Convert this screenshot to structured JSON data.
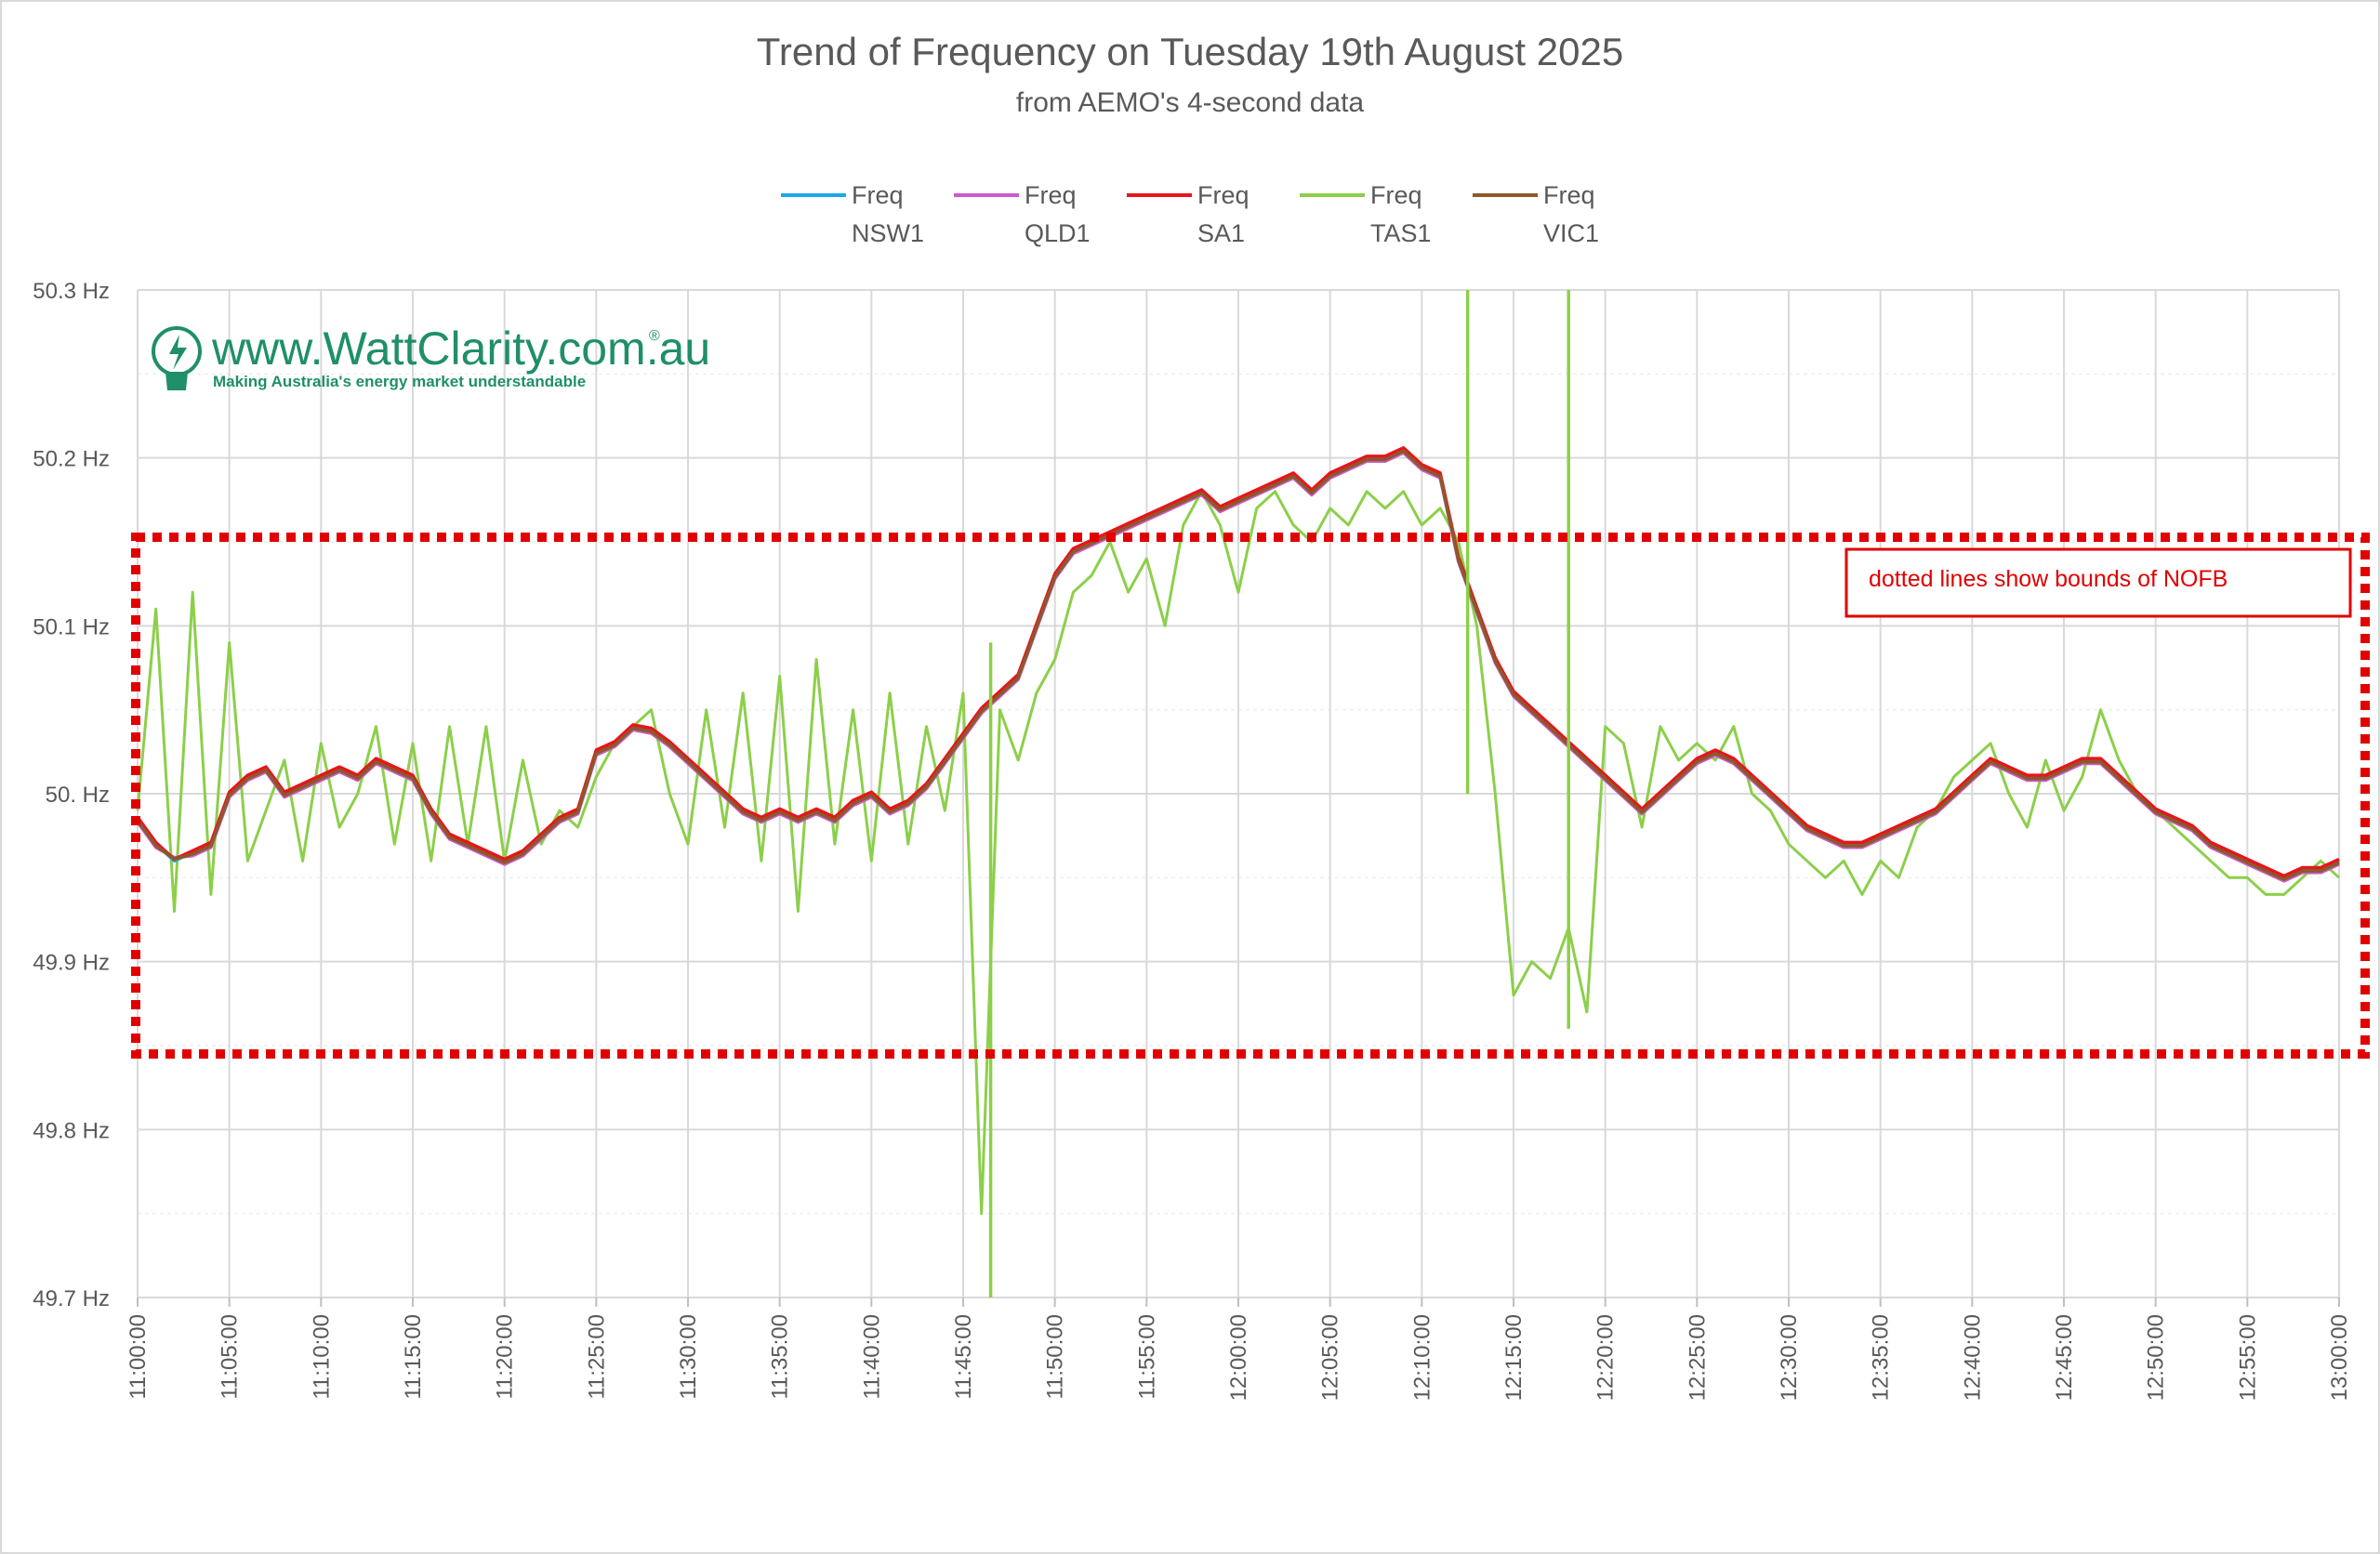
{
  "chart_data": {
    "type": "line",
    "title": "Trend of Frequency on Tuesday 19th August 2025",
    "subtitle": "from AEMO's 4-second data",
    "ylabel": "",
    "xlabel": "",
    "ylim": [
      49.7,
      50.3
    ],
    "yticks": [
      "49.7 Hz",
      "49.8 Hz",
      "49.9 Hz",
      "50. Hz",
      "50.1 Hz",
      "50.2 Hz",
      "50.3 Hz"
    ],
    "xticks": [
      "11:00:00",
      "11:05:00",
      "11:10:00",
      "11:15:00",
      "11:20:00",
      "11:25:00",
      "11:30:00",
      "11:35:00",
      "11:40:00",
      "11:45:00",
      "11:50:00",
      "11:55:00",
      "12:00:00",
      "12:05:00",
      "12:10:00",
      "12:15:00",
      "12:20:00",
      "12:25:00",
      "12:30:00",
      "12:35:00",
      "12:40:00",
      "12:45:00",
      "12:50:00",
      "12:55:00",
      "13:00:00"
    ],
    "legend_position": "top",
    "grid": true,
    "x_minutes": [
      0,
      1,
      2,
      3,
      4,
      5,
      6,
      7,
      8,
      9,
      10,
      11,
      12,
      13,
      14,
      15,
      16,
      17,
      18,
      19,
      20,
      21,
      22,
      23,
      24,
      25,
      26,
      27,
      28,
      29,
      30,
      31,
      32,
      33,
      34,
      35,
      36,
      37,
      38,
      39,
      40,
      41,
      42,
      43,
      44,
      45,
      46,
      47,
      48,
      49,
      50,
      51,
      52,
      53,
      54,
      55,
      56,
      57,
      58,
      59,
      60,
      61,
      62,
      63,
      64,
      65,
      66,
      67,
      68,
      69,
      70,
      71,
      72,
      73,
      74,
      75,
      76,
      77,
      78,
      79,
      80,
      81,
      82,
      83,
      84,
      85,
      86,
      87,
      88,
      89,
      90,
      91,
      92,
      93,
      94,
      95,
      96,
      97,
      98,
      99,
      100,
      101,
      102,
      103,
      104,
      105,
      106,
      107,
      108,
      109,
      110,
      111,
      112,
      113,
      114,
      115,
      116,
      117,
      118,
      119,
      120
    ],
    "series": [
      {
        "name": "Freq NSW1",
        "legend": [
          "Freq",
          "NSW1"
        ],
        "color": "#1aa7e8",
        "values": [
          49.985,
          49.97,
          49.96,
          49.965,
          49.97,
          50.0,
          50.01,
          50.015,
          50.0,
          50.005,
          50.01,
          50.015,
          50.01,
          50.02,
          50.015,
          50.01,
          49.99,
          49.975,
          49.97,
          49.965,
          49.96,
          49.965,
          49.975,
          49.985,
          49.99,
          50.025,
          50.03,
          50.04,
          50.038,
          50.03,
          50.02,
          50.01,
          50.0,
          49.99,
          49.985,
          49.99,
          49.985,
          49.99,
          49.985,
          49.995,
          50.0,
          49.99,
          49.995,
          50.005,
          50.02,
          50.035,
          50.05,
          50.06,
          50.07,
          50.1,
          50.13,
          50.145,
          50.15,
          50.155,
          50.16,
          50.165,
          50.17,
          50.175,
          50.18,
          50.17,
          50.175,
          50.18,
          50.185,
          50.19,
          50.18,
          50.19,
          50.195,
          50.2,
          50.2,
          50.205,
          50.195,
          50.19,
          50.14,
          50.11,
          50.08,
          50.06,
          50.05,
          50.04,
          50.03,
          50.02,
          50.01,
          50.0,
          49.99,
          50.0,
          50.01,
          50.02,
          50.025,
          50.02,
          50.01,
          50.0,
          49.99,
          49.98,
          49.975,
          49.97,
          49.97,
          49.975,
          49.98,
          49.985,
          49.99,
          50.0,
          50.01,
          50.02,
          50.015,
          50.01,
          50.01,
          50.015,
          50.02,
          50.02,
          50.01,
          50.0,
          49.99,
          49.985,
          49.98,
          49.97,
          49.965,
          49.96,
          49.955,
          49.95,
          49.955,
          49.955,
          49.96
        ]
      },
      {
        "name": "Freq QLD1",
        "legend": [
          "Freq",
          "QLD1"
        ],
        "color": "#cc5bc9",
        "values": [
          49.983,
          49.968,
          49.962,
          49.963,
          49.968,
          49.998,
          50.008,
          50.013,
          49.998,
          50.003,
          50.008,
          50.013,
          50.008,
          50.018,
          50.013,
          50.008,
          49.988,
          49.973,
          49.968,
          49.963,
          49.958,
          49.963,
          49.973,
          49.983,
          49.988,
          50.023,
          50.028,
          50.038,
          50.036,
          50.028,
          50.018,
          50.008,
          49.998,
          49.988,
          49.983,
          49.988,
          49.983,
          49.988,
          49.983,
          49.993,
          49.998,
          49.988,
          49.993,
          50.003,
          50.018,
          50.033,
          50.048,
          50.058,
          50.068,
          50.098,
          50.128,
          50.143,
          50.148,
          50.153,
          50.158,
          50.163,
          50.168,
          50.173,
          50.178,
          50.168,
          50.173,
          50.178,
          50.183,
          50.188,
          50.178,
          50.188,
          50.193,
          50.198,
          50.198,
          50.203,
          50.193,
          50.188,
          50.138,
          50.108,
          50.078,
          50.058,
          50.048,
          50.038,
          50.028,
          50.018,
          50.008,
          49.998,
          49.988,
          49.998,
          50.008,
          50.018,
          50.023,
          50.018,
          50.008,
          49.998,
          49.988,
          49.978,
          49.973,
          49.968,
          49.968,
          49.973,
          49.978,
          49.983,
          49.988,
          49.998,
          50.008,
          50.018,
          50.013,
          50.008,
          50.008,
          50.013,
          50.018,
          50.018,
          50.008,
          49.998,
          49.988,
          49.983,
          49.978,
          49.968,
          49.963,
          49.958,
          49.953,
          49.948,
          49.953,
          49.953,
          49.958
        ]
      },
      {
        "name": "Freq SA1",
        "legend": [
          "Freq",
          "SA1"
        ],
        "color": "#e8141c",
        "values": [
          49.986,
          49.971,
          49.961,
          49.966,
          49.971,
          50.001,
          50.011,
          50.016,
          50.001,
          50.006,
          50.011,
          50.016,
          50.011,
          50.021,
          50.016,
          50.011,
          49.991,
          49.976,
          49.971,
          49.966,
          49.961,
          49.966,
          49.976,
          49.986,
          49.991,
          50.026,
          50.031,
          50.041,
          50.039,
          50.031,
          50.021,
          50.011,
          50.001,
          49.991,
          49.986,
          49.991,
          49.986,
          49.991,
          49.986,
          49.996,
          50.001,
          49.991,
          49.996,
          50.006,
          50.021,
          50.036,
          50.051,
          50.061,
          50.071,
          50.101,
          50.131,
          50.146,
          50.151,
          50.156,
          50.161,
          50.166,
          50.171,
          50.176,
          50.181,
          50.171,
          50.176,
          50.181,
          50.186,
          50.191,
          50.181,
          50.191,
          50.196,
          50.201,
          50.201,
          50.206,
          50.196,
          50.191,
          50.141,
          50.111,
          50.081,
          50.061,
          50.051,
          50.041,
          50.031,
          50.021,
          50.011,
          50.001,
          49.991,
          50.001,
          50.011,
          50.021,
          50.026,
          50.021,
          50.011,
          50.001,
          49.991,
          49.981,
          49.976,
          49.971,
          49.971,
          49.976,
          49.981,
          49.986,
          49.991,
          50.001,
          50.011,
          50.021,
          50.016,
          50.011,
          50.011,
          50.016,
          50.021,
          50.021,
          50.011,
          50.001,
          49.991,
          49.986,
          49.981,
          49.971,
          49.966,
          49.961,
          49.956,
          49.951,
          49.956,
          49.956,
          49.961
        ]
      },
      {
        "name": "Freq TAS1",
        "legend": [
          "Freq",
          "TAS1"
        ],
        "color": "#8ccf4a",
        "values": [
          49.99,
          50.11,
          49.93,
          50.12,
          49.94,
          50.09,
          49.96,
          49.99,
          50.02,
          49.96,
          50.03,
          49.98,
          50.0,
          50.04,
          49.97,
          50.03,
          49.96,
          50.04,
          49.97,
          50.04,
          49.96,
          50.02,
          49.97,
          49.99,
          49.98,
          50.01,
          50.03,
          50.04,
          50.05,
          50.0,
          49.97,
          50.05,
          49.98,
          50.06,
          49.96,
          50.07,
          49.93,
          50.08,
          49.97,
          50.05,
          49.96,
          50.06,
          49.97,
          50.04,
          49.99,
          50.06,
          49.75,
          50.05,
          50.02,
          50.06,
          50.08,
          50.12,
          50.13,
          50.15,
          50.12,
          50.14,
          50.1,
          50.16,
          50.18,
          50.16,
          50.12,
          50.17,
          50.18,
          50.16,
          50.15,
          50.17,
          50.16,
          50.18,
          50.17,
          50.18,
          50.16,
          50.17,
          50.15,
          50.1,
          50.0,
          49.88,
          49.9,
          49.89,
          49.92,
          49.87,
          50.04,
          50.03,
          49.98,
          50.04,
          50.02,
          50.03,
          50.02,
          50.04,
          50.0,
          49.99,
          49.97,
          49.96,
          49.95,
          49.96,
          49.94,
          49.96,
          49.95,
          49.98,
          49.99,
          50.01,
          50.02,
          50.03,
          50.0,
          49.98,
          50.02,
          49.99,
          50.01,
          50.05,
          50.02,
          50.0,
          49.99,
          49.98,
          49.97,
          49.96,
          49.95,
          49.95,
          49.94,
          49.94,
          49.95,
          49.96,
          49.95
        ]
      },
      {
        "name": "Freq VIC1",
        "legend": [
          "Freq",
          "VIC1"
        ],
        "color": "#8b5a2b",
        "values": [
          49.984,
          49.969,
          49.961,
          49.964,
          49.969,
          49.999,
          50.009,
          50.014,
          49.999,
          50.004,
          50.009,
          50.014,
          50.009,
          50.019,
          50.014,
          50.009,
          49.989,
          49.974,
          49.969,
          49.964,
          49.959,
          49.964,
          49.974,
          49.984,
          49.989,
          50.024,
          50.029,
          50.039,
          50.037,
          50.029,
          50.019,
          50.009,
          49.999,
          49.989,
          49.984,
          49.989,
          49.984,
          49.989,
          49.984,
          49.994,
          49.999,
          49.989,
          49.994,
          50.004,
          50.019,
          50.034,
          50.049,
          50.059,
          50.069,
          50.099,
          50.129,
          50.144,
          50.149,
          50.154,
          50.159,
          50.164,
          50.169,
          50.174,
          50.179,
          50.169,
          50.174,
          50.179,
          50.184,
          50.189,
          50.179,
          50.189,
          50.194,
          50.199,
          50.199,
          50.204,
          50.194,
          50.189,
          50.139,
          50.109,
          50.079,
          50.059,
          50.049,
          50.039,
          50.029,
          50.019,
          50.009,
          49.999,
          49.989,
          49.999,
          50.009,
          50.019,
          50.024,
          50.019,
          50.009,
          49.999,
          49.989,
          49.979,
          49.974,
          49.969,
          49.969,
          49.974,
          49.979,
          49.984,
          49.989,
          49.999,
          50.009,
          50.019,
          50.014,
          50.009,
          50.009,
          50.014,
          50.019,
          50.019,
          50.009,
          49.999,
          49.989,
          49.984,
          49.979,
          49.969,
          49.964,
          49.959,
          49.954,
          49.949,
          49.954,
          49.954,
          49.959
        ]
      }
    ],
    "annotations": {
      "nofb_box_label": "dotted lines show bounds of NOFB",
      "nofb_upper": 50.15,
      "nofb_lower": 49.85
    },
    "tas_spikes": [
      {
        "minute": 46.5,
        "low": 49.7,
        "high": 50.09
      },
      {
        "minute": 72.5,
        "low": 50.0,
        "high": 50.3
      },
      {
        "minute": 78,
        "low": 49.86,
        "high": 50.3
      }
    ]
  },
  "logo": {
    "text": "www.WattClarity.com.au",
    "registered": "®",
    "tagline": "Making Australia's energy market understandable"
  },
  "colors": {
    "gridline": "#d9d9d9",
    "annotation": "#e00000",
    "brand": "#1f8f6a"
  }
}
